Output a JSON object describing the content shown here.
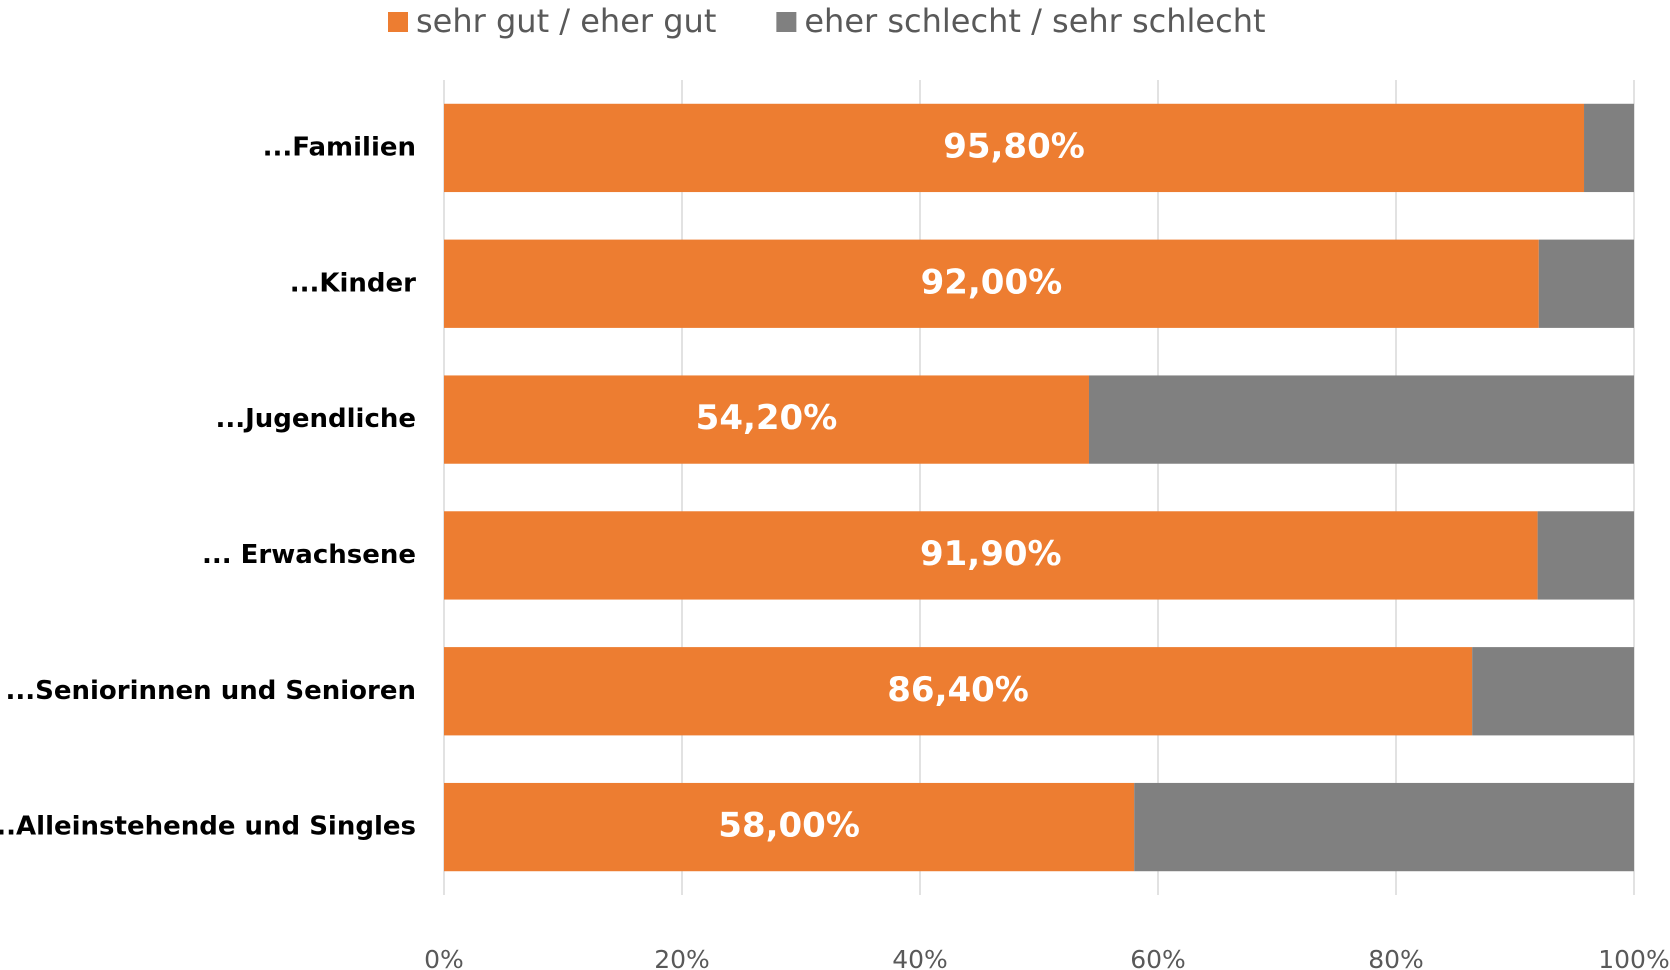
{
  "chart_data": {
    "type": "stacked_bar_horizontal",
    "categories": [
      "...Familien",
      "...Kinder",
      "...Jugendliche",
      "... Erwachsene",
      "...Seniorinnen und Senioren",
      "...Alleinstehende und Singles"
    ],
    "series": [
      {
        "name": "sehr gut / eher gut",
        "color": "#ed7d31",
        "values": [
          95.8,
          92.0,
          54.2,
          91.9,
          86.4,
          58.0
        ],
        "value_labels": [
          "95,80%",
          "92,00%",
          "54,20%",
          "91,90%",
          "86,40%",
          "58,00%"
        ]
      },
      {
        "name": "eher schlecht / sehr schlecht",
        "color": "#808080",
        "values": [
          4.2,
          8.0,
          45.8,
          8.1,
          13.6,
          42.0
        ]
      }
    ],
    "xlim": [
      0,
      100
    ],
    "xticks": [
      {
        "value": 0,
        "label": "0%"
      },
      {
        "value": 20,
        "label": "20%"
      },
      {
        "value": 40,
        "label": "40%"
      },
      {
        "value": 60,
        "label": "60%"
      },
      {
        "value": 80,
        "label": "80%"
      },
      {
        "value": 100,
        "label": "100%"
      }
    ],
    "grid": true,
    "legend": "top"
  }
}
